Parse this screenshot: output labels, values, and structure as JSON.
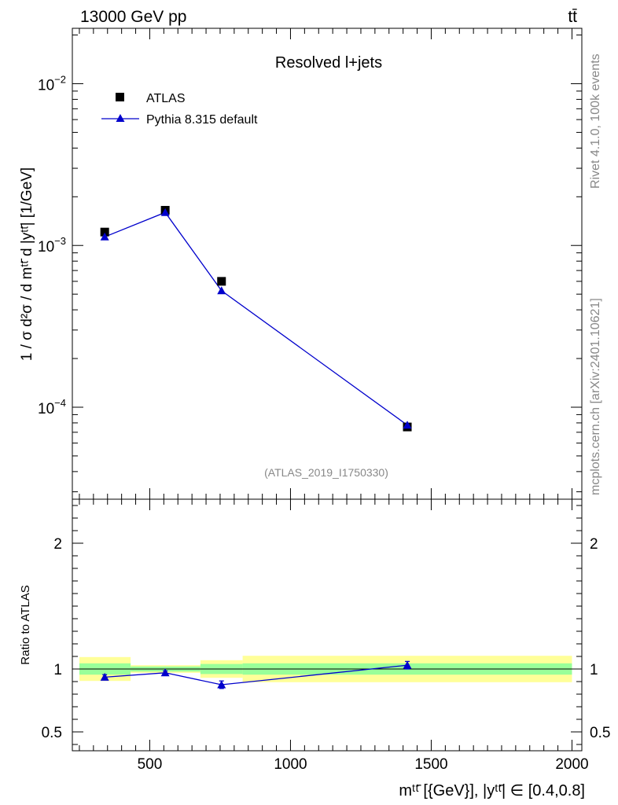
{
  "header": {
    "energy_label": "13000 GeV pp",
    "process_label": "tt̄"
  },
  "side_labels": {
    "rivet": "Rivet 4.1.0,  100k events",
    "source": "mcplots.cern.ch [arXiv:2401.10621]"
  },
  "chart_data": [
    {
      "type": "line",
      "panel": "main",
      "title": "Resolved l+jets",
      "analysis_id": "(ATLAS_2019_I1750330)",
      "ylabel": "1 / σ d²σ / d mᵗᵗ̄ d |yᵗᵗ̄| [1/GeV]",
      "yscale": "log",
      "ylim": [
        2.7e-05,
        0.022
      ],
      "xlim": [
        225,
        2035
      ],
      "y_ticks": [
        {
          "value": 0.0001,
          "base": "10",
          "exp": "−4"
        },
        {
          "value": 0.001,
          "base": "10",
          "exp": "−3"
        },
        {
          "value": 0.01,
          "base": "10",
          "exp": "−2"
        }
      ],
      "legend": {
        "position": "top-left",
        "entries": [
          {
            "label": "ATLAS",
            "marker": "square",
            "color": "#000000"
          },
          {
            "label": "Pythia 8.315 default",
            "marker": "triangle",
            "color": "#0000cc"
          }
        ]
      },
      "series": [
        {
          "name": "ATLAS",
          "x": [
            340,
            555,
            755,
            1415
          ],
          "y": [
            0.00121,
            0.00165,
            0.0006,
            7.55e-05
          ],
          "color": "#000000"
        },
        {
          "name": "Pythia 8.315 default",
          "x": [
            340,
            555,
            755,
            1415
          ],
          "y": [
            0.00113,
            0.0016,
            0.000525,
            7.75e-05
          ],
          "yerr_low": [
            4e-05,
            4e-05,
            2e-05,
            4e-06
          ],
          "yerr_high": [
            4e-05,
            4e-05,
            2e-05,
            4e-06
          ],
          "color": "#0000cc"
        }
      ]
    },
    {
      "type": "line",
      "panel": "ratio",
      "ylabel": "Ratio to ATLAS",
      "xlabel": "mᵗᵗ̄ [{GeV}], |yᵗᵗ̄| ∈ [0.4,0.8]",
      "ylim": [
        0.35,
        2.35
      ],
      "xlim": [
        225,
        2035
      ],
      "x_ticks": [
        500,
        1000,
        1500,
        2000
      ],
      "y_ticks": [
        0.5,
        1,
        2
      ],
      "reference_line": 1,
      "bands": [
        {
          "x_low": 250,
          "x_high": 432,
          "stat_low": 0.955,
          "stat_high": 1.045,
          "tot_low": 0.905,
          "tot_high": 1.095
        },
        {
          "x_low": 432,
          "x_high": 680,
          "stat_low": 0.98,
          "stat_high": 1.02,
          "tot_low": 0.97,
          "tot_high": 1.03
        },
        {
          "x_low": 680,
          "x_high": 830,
          "stat_low": 0.96,
          "stat_high": 1.04,
          "tot_low": 0.93,
          "tot_high": 1.07
        },
        {
          "x_low": 830,
          "x_high": 2000,
          "stat_low": 0.955,
          "stat_high": 1.045,
          "tot_low": 0.895,
          "tot_high": 1.105
        }
      ],
      "series": [
        {
          "name": "Pythia 8.315 default / ATLAS",
          "x": [
            340,
            555,
            755,
            1415
          ],
          "y": [
            0.935,
            0.97,
            0.875,
            1.03
          ],
          "yerr_low": [
            0.02,
            0.015,
            0.03,
            0.03
          ],
          "yerr_high": [
            0.02,
            0.015,
            0.03,
            0.03
          ],
          "color": "#0000cc"
        }
      ]
    }
  ]
}
